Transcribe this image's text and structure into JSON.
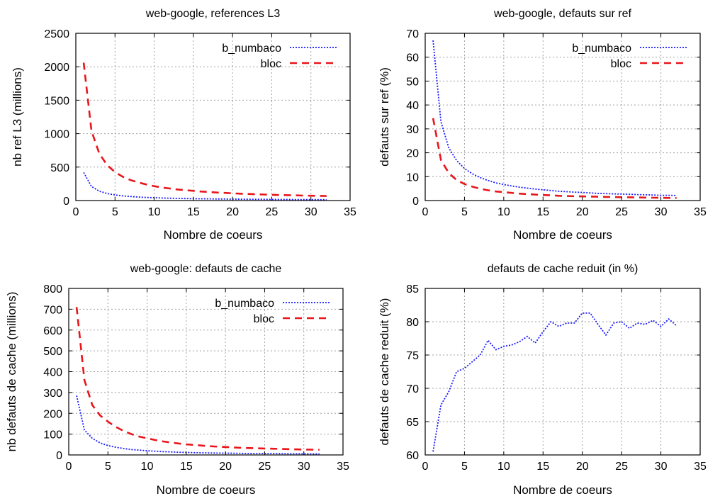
{
  "colors": {
    "b_numbaco": "#1a1aff",
    "bloc": "#e8161b",
    "grid": "#a0a0a0",
    "axis": "#000000"
  },
  "chart_data": [
    {
      "type": "line",
      "title": "web-google, references L3",
      "xlabel": "Nombre de coeurs",
      "ylabel": "nb ref L3 (millions)",
      "xlim": [
        0,
        35
      ],
      "ylim": [
        0,
        2500
      ],
      "xticks": [
        0,
        5,
        10,
        15,
        20,
        25,
        30,
        35
      ],
      "yticks": [
        0,
        500,
        1000,
        1500,
        2000,
        2500
      ],
      "grid": true,
      "legend": "top-right",
      "series": [
        {
          "name": "b_numbaco",
          "style": "dotted",
          "color": "#1a1aff",
          "x": [
            1,
            2,
            3,
            4,
            5,
            6,
            7,
            8,
            9,
            10,
            11,
            12,
            13,
            14,
            15,
            16,
            17,
            18,
            19,
            20,
            21,
            22,
            23,
            24,
            25,
            26,
            27,
            28,
            29,
            30,
            31,
            32
          ],
          "y": [
            420,
            210,
            140,
            105,
            84,
            70,
            60,
            52,
            47,
            42,
            38,
            35,
            32,
            30,
            28,
            26,
            25,
            23,
            22,
            21,
            20,
            19,
            18,
            17.5,
            17,
            16,
            15.5,
            15,
            14.5,
            14,
            13.5,
            13
          ]
        },
        {
          "name": "bloc",
          "style": "dashed",
          "color": "#e8161b",
          "x": [
            1,
            2,
            3,
            4,
            5,
            6,
            7,
            8,
            9,
            10,
            11,
            12,
            13,
            14,
            15,
            16,
            17,
            18,
            19,
            20,
            21,
            22,
            23,
            24,
            25,
            26,
            27,
            28,
            29,
            30,
            31,
            32
          ],
          "y": [
            2060,
            1040,
            700,
            530,
            425,
            355,
            305,
            270,
            240,
            215,
            195,
            180,
            165,
            155,
            145,
            135,
            128,
            120,
            114,
            108,
            103,
            98,
            94,
            90,
            86,
            83,
            80,
            77,
            74,
            72,
            70,
            68
          ]
        }
      ]
    },
    {
      "type": "line",
      "title": "web-google, defauts sur ref",
      "xlabel": "Nombre de coeurs",
      "ylabel": "defauts sur ref (%)",
      "xlim": [
        0,
        35
      ],
      "ylim": [
        0,
        70
      ],
      "xticks": [
        0,
        5,
        10,
        15,
        20,
        25,
        30,
        35
      ],
      "yticks": [
        0,
        10,
        20,
        30,
        40,
        50,
        60,
        70
      ],
      "grid": true,
      "legend": "top-right",
      "series": [
        {
          "name": "b_numbaco",
          "style": "dotted",
          "color": "#1a1aff",
          "x": [
            1,
            2,
            3,
            4,
            5,
            6,
            7,
            8,
            9,
            10,
            11,
            12,
            13,
            14,
            15,
            16,
            17,
            18,
            19,
            20,
            21,
            22,
            23,
            24,
            25,
            26,
            27,
            28,
            29,
            30,
            31,
            32
          ],
          "y": [
            67,
            33,
            22,
            16.8,
            13.4,
            11.2,
            9.6,
            8.4,
            7.4,
            6.7,
            6.1,
            5.6,
            5.2,
            4.8,
            4.5,
            4.2,
            3.9,
            3.7,
            3.5,
            3.4,
            3.2,
            3.0,
            2.9,
            2.8,
            2.7,
            2.6,
            2.5,
            2.4,
            2.3,
            2.2,
            2.2,
            2.1
          ]
        },
        {
          "name": "bloc",
          "style": "dashed",
          "color": "#e8161b",
          "x": [
            1,
            2,
            3,
            4,
            5,
            6,
            7,
            8,
            9,
            10,
            11,
            12,
            13,
            14,
            15,
            16,
            17,
            18,
            19,
            20,
            21,
            22,
            23,
            24,
            25,
            26,
            27,
            28,
            29,
            30,
            31,
            32
          ],
          "y": [
            34.5,
            17,
            11.5,
            8.6,
            6.9,
            5.8,
            4.9,
            4.3,
            3.8,
            3.5,
            3.2,
            2.9,
            2.7,
            2.5,
            2.3,
            2.2,
            2.0,
            1.9,
            1.8,
            1.75,
            1.65,
            1.6,
            1.5,
            1.45,
            1.4,
            1.35,
            1.3,
            1.25,
            1.2,
            1.15,
            1.1,
            1.1
          ]
        }
      ]
    },
    {
      "type": "line",
      "title": "web-google: defauts de cache",
      "xlabel": "Nombre de coeurs",
      "ylabel": "nb defauts de cache (millions)",
      "xlim": [
        0,
        35
      ],
      "ylim": [
        0,
        800
      ],
      "xticks": [
        0,
        5,
        10,
        15,
        20,
        25,
        30,
        35
      ],
      "yticks": [
        0,
        100,
        200,
        300,
        400,
        500,
        600,
        700,
        800
      ],
      "grid": true,
      "legend": "top-right",
      "series": [
        {
          "name": "b_numbaco",
          "style": "dotted",
          "color": "#1a1aff",
          "x": [
            1,
            2,
            3,
            4,
            5,
            6,
            7,
            8,
            9,
            10,
            11,
            12,
            13,
            14,
            15,
            16,
            17,
            18,
            19,
            20,
            21,
            22,
            23,
            24,
            25,
            26,
            27,
            28,
            29,
            30,
            31,
            32
          ],
          "y": [
            285,
            120,
            80,
            58,
            45,
            37,
            31,
            26,
            23,
            20,
            18,
            16,
            14.5,
            13,
            12,
            11,
            10.3,
            9.6,
            9,
            8.5,
            8,
            7.6,
            7.2,
            6.9,
            6.6,
            6.3,
            6,
            5.8,
            5.6,
            5.4,
            5.2,
            5
          ]
        },
        {
          "name": "bloc",
          "style": "dashed",
          "color": "#e8161b",
          "x": [
            1,
            2,
            3,
            4,
            5,
            6,
            7,
            8,
            9,
            10,
            11,
            12,
            13,
            14,
            15,
            16,
            17,
            18,
            19,
            20,
            21,
            22,
            23,
            24,
            25,
            26,
            27,
            28,
            29,
            30,
            31,
            32
          ],
          "y": [
            710,
            360,
            240,
            190,
            160,
            135,
            115,
            100,
            88,
            80,
            72,
            65,
            60,
            55,
            51,
            48,
            45,
            42,
            40,
            38,
            36,
            34,
            33,
            32,
            31,
            30,
            29,
            28,
            27,
            26,
            25.5,
            25
          ]
        }
      ]
    },
    {
      "type": "line",
      "title": "defauts de cache reduit (in %)",
      "xlabel": "Nombre de coeurs",
      "ylabel": "defauts de cache reduit (%)",
      "xlim": [
        0,
        35
      ],
      "ylim": [
        60,
        85
      ],
      "xticks": [
        0,
        5,
        10,
        15,
        20,
        25,
        30,
        35
      ],
      "yticks": [
        60,
        65,
        70,
        75,
        80,
        85
      ],
      "grid": true,
      "legend": "none",
      "series": [
        {
          "name": "",
          "style": "dotted",
          "color": "#1a1aff",
          "x": [
            1,
            2,
            3,
            4,
            5,
            6,
            7,
            8,
            9,
            10,
            11,
            12,
            13,
            14,
            15,
            16,
            17,
            18,
            19,
            20,
            21,
            22,
            23,
            24,
            25,
            26,
            27,
            28,
            29,
            30,
            31,
            32
          ],
          "y": [
            60.5,
            67.5,
            69.5,
            72.5,
            73.0,
            74.0,
            75.0,
            77.2,
            75.8,
            76.3,
            76.5,
            77.0,
            77.8,
            76.8,
            78.5,
            80.0,
            79.3,
            79.8,
            79.8,
            81.3,
            81.3,
            79.6,
            78.0,
            79.8,
            80.0,
            79.0,
            79.8,
            79.6,
            80.2,
            79.3,
            80.4,
            79.4
          ]
        }
      ]
    }
  ]
}
